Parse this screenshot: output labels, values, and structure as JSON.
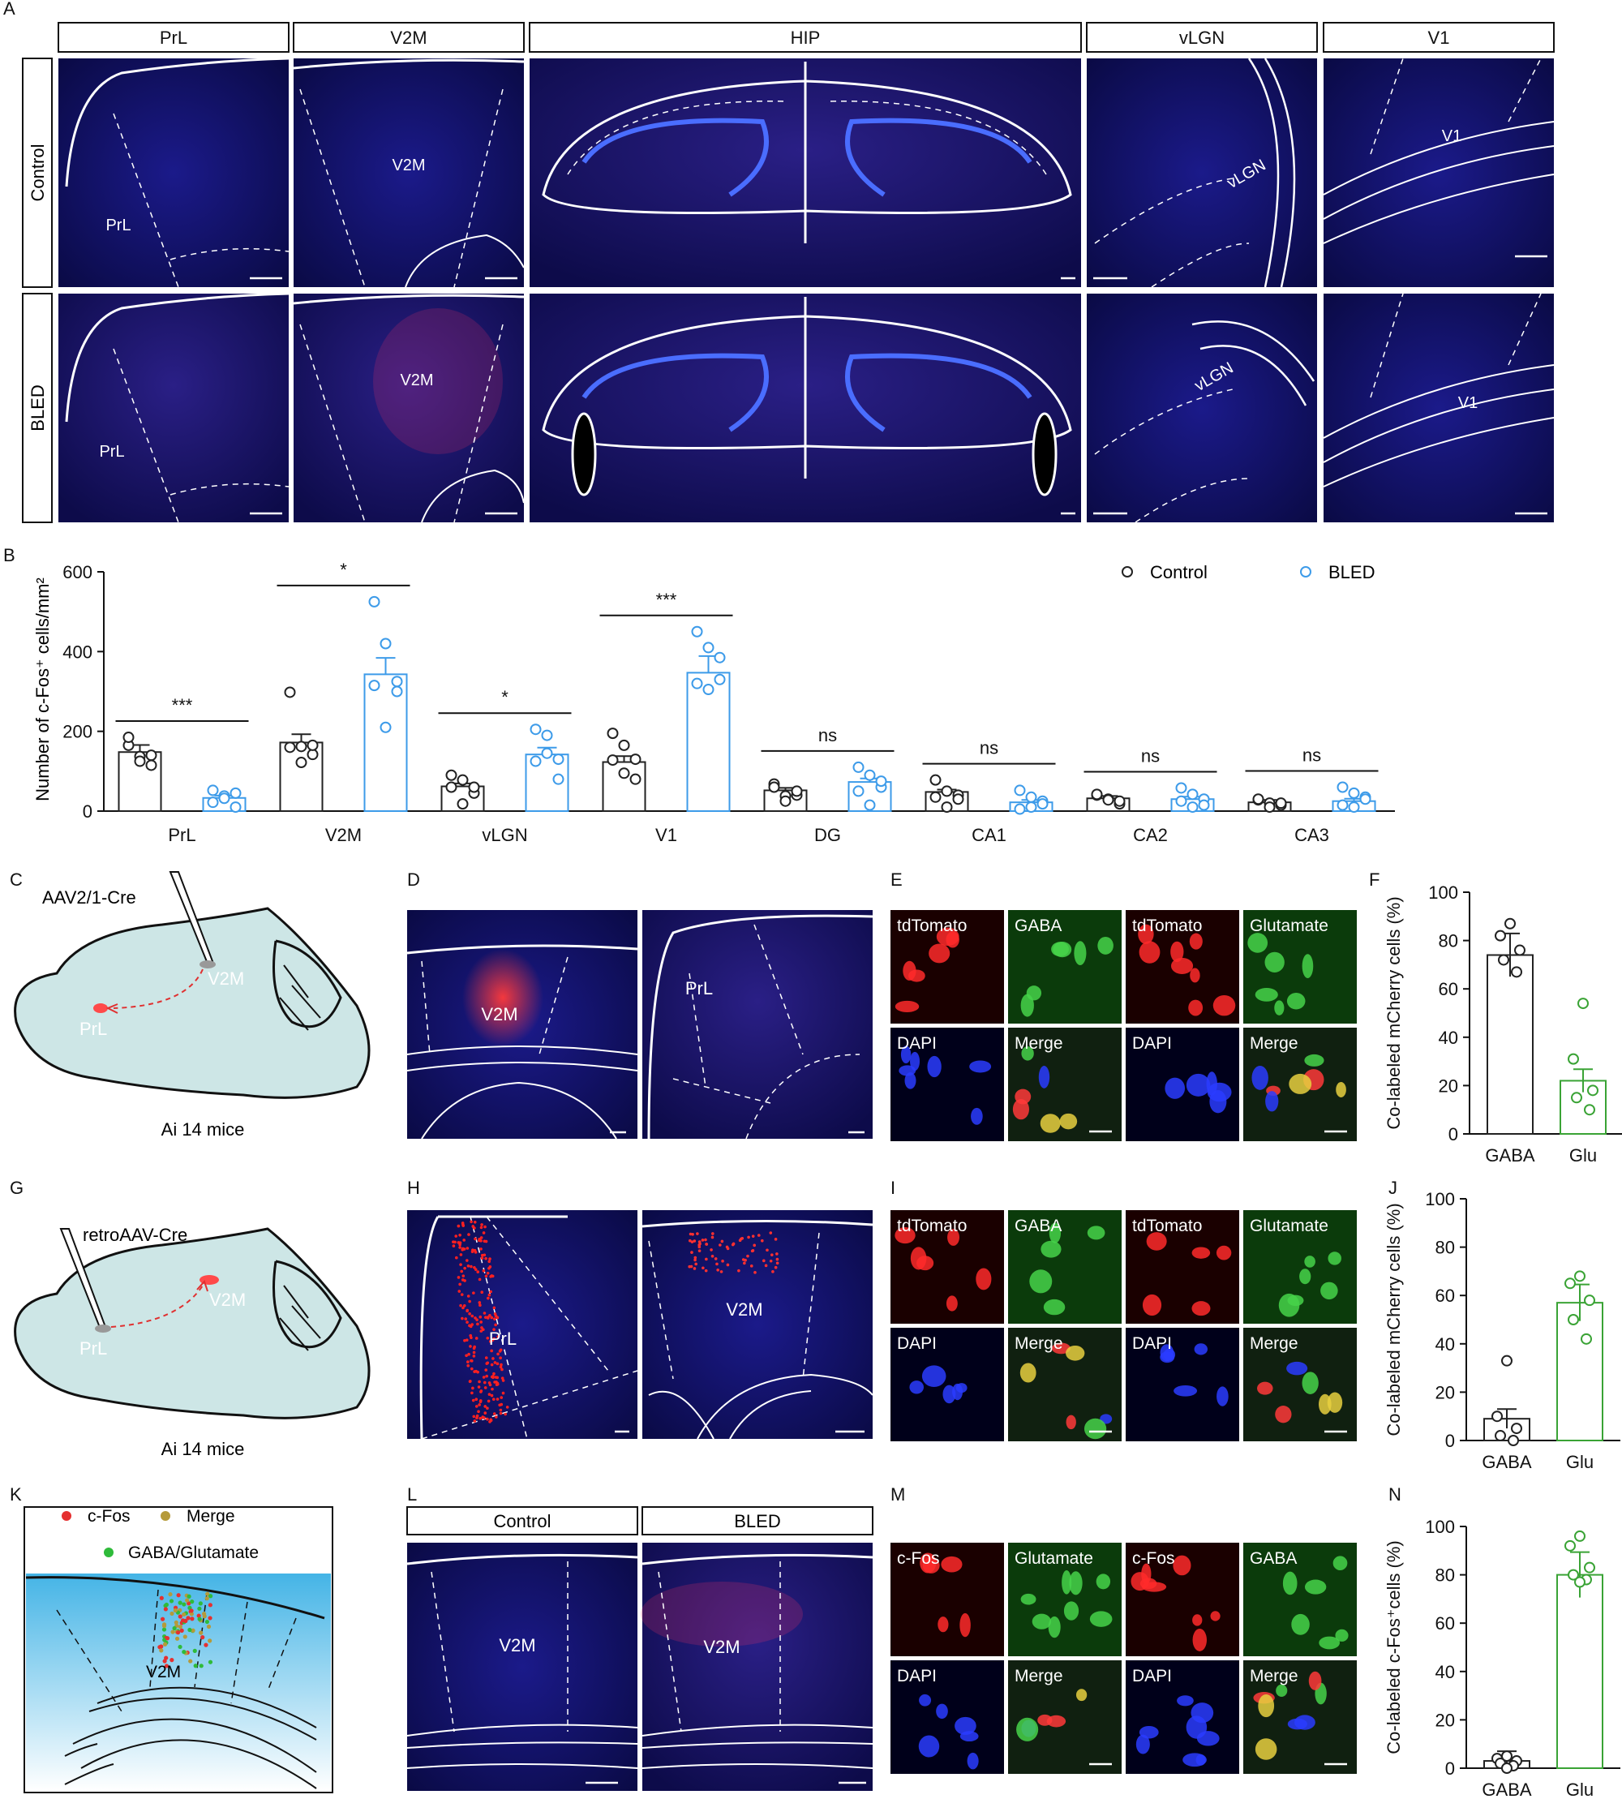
{
  "panel_letters": [
    "A",
    "B",
    "C",
    "D",
    "E",
    "F",
    "G",
    "H",
    "I",
    "J",
    "K",
    "L",
    "M",
    "N"
  ],
  "panelA": {
    "columns": [
      "PrL",
      "V2M",
      "HIP",
      "vLGN",
      "V1"
    ],
    "rows": [
      "Control",
      "BLED"
    ],
    "control_labels": [
      "PrL",
      "V2M",
      "",
      "vLGN",
      "V1"
    ],
    "bled_labels": [
      "PrL",
      "V2M",
      "",
      "vLGN",
      "V1"
    ]
  },
  "chart_data": [
    {
      "panel": "B",
      "type": "bar",
      "ylabel": "Number of c-Fos⁺ cells/mm²",
      "ylim": [
        0,
        600
      ],
      "yticks": [
        0,
        200,
        400,
        600
      ],
      "categories": [
        "PrL",
        "V2M",
        "vLGN",
        "V1",
        "DG",
        "CA1",
        "CA2",
        "CA3"
      ],
      "series": [
        {
          "name": "Control",
          "color": "#222222",
          "values": [
            148,
            172,
            62,
            123,
            52,
            48,
            32,
            22
          ]
        },
        {
          "name": "BLED",
          "color": "#3d9be9",
          "values": [
            33,
            343,
            142,
            347,
            73,
            22,
            30,
            25
          ]
        }
      ],
      "significance": [
        "***",
        "*",
        "*",
        "***",
        "ns",
        "ns",
        "ns",
        "ns"
      ],
      "legend": "top-right",
      "points_control": [
        [
          165,
          137,
          140,
          185,
          125,
          115
        ],
        [
          298,
          162,
          142,
          160,
          122,
          165
        ],
        [
          90,
          78,
          45,
          60,
          18,
          60
        ],
        [
          195,
          165,
          130,
          128,
          95,
          80
        ],
        [
          68,
          38,
          40,
          60,
          25,
          50
        ],
        [
          78,
          50,
          40,
          35,
          10,
          30
        ],
        [
          40,
          30,
          18,
          42,
          28,
          25
        ],
        [
          28,
          20,
          15,
          30,
          10,
          20
        ]
      ],
      "points_bled": [
        [
          52,
          38,
          10,
          22,
          32,
          45
        ],
        [
          525,
          420,
          325,
          315,
          210,
          300
        ],
        [
          205,
          190,
          130,
          125,
          145,
          80
        ],
        [
          450,
          410,
          385,
          320,
          305,
          330
        ],
        [
          110,
          90,
          60,
          50,
          15,
          75
        ],
        [
          52,
          35,
          25,
          5,
          10,
          18
        ],
        [
          58,
          42,
          30,
          25,
          10,
          15
        ],
        [
          60,
          45,
          35,
          15,
          10,
          30
        ]
      ]
    },
    {
      "panel": "F",
      "type": "bar",
      "ylabel": "Co-labeled mCherry cells (%)",
      "ylim": [
        0,
        100
      ],
      "yticks": [
        0,
        20,
        40,
        60,
        80,
        100
      ],
      "categories": [
        "GABA",
        "Glu"
      ],
      "values": [
        74,
        22
      ],
      "colors": [
        "#222222",
        "#3aa335"
      ],
      "points": [
        [
          87,
          82,
          76,
          72,
          67
        ],
        [
          54,
          31,
          18,
          15,
          10
        ]
      ]
    },
    {
      "panel": "J",
      "type": "bar",
      "ylabel": "Co-labeled mCherry cells (%)",
      "ylim": [
        0,
        100
      ],
      "yticks": [
        0,
        20,
        40,
        60,
        80,
        100
      ],
      "categories": [
        "GABA",
        "Glu"
      ],
      "values": [
        9,
        57
      ],
      "colors": [
        "#222222",
        "#3aa335"
      ],
      "points": [
        [
          33,
          10,
          5,
          2,
          0
        ],
        [
          68,
          65,
          58,
          50,
          42
        ]
      ]
    },
    {
      "panel": "N",
      "type": "bar",
      "ylabel": "Co-labeled c-Fos⁺cells (%)",
      "ylim": [
        0,
        100
      ],
      "yticks": [
        0,
        20,
        40,
        60,
        80,
        100
      ],
      "categories": [
        "GABA",
        "Glu"
      ],
      "values": [
        3,
        80
      ],
      "colors": [
        "#222222",
        "#3aa335"
      ],
      "points": [
        [
          5,
          4,
          3,
          2,
          1,
          0
        ],
        [
          96,
          92,
          83,
          80,
          78,
          77
        ]
      ]
    }
  ],
  "legendB": {
    "control": "Control",
    "bled": "BLED"
  },
  "panelC": {
    "virus": "AAV2/1-Cre",
    "target": "V2M",
    "source": "PrL",
    "mice": "Ai 14 mice"
  },
  "panelG": {
    "virus": "retroAAV-Cre",
    "target": "V2M",
    "source": "PrL",
    "mice": "Ai 14 mice"
  },
  "panelD": {
    "left": "V2M",
    "right": "PrL"
  },
  "panelH": {
    "left": "PrL",
    "right": "V2M"
  },
  "panelE": {
    "labels": [
      "tdTomato",
      "GABA",
      "tdTomato",
      "Glutamate",
      "DAPI",
      "Merge",
      "DAPI",
      "Merge"
    ]
  },
  "panelI": {
    "labels": [
      "tdTomato",
      "GABA",
      "tdTomato",
      "Glutamate",
      "DAPI",
      "Merge",
      "DAPI",
      "Merge"
    ]
  },
  "panelM": {
    "labels": [
      "c-Fos",
      "Glutamate",
      "c-Fos",
      "GABA",
      "DAPI",
      "Merge",
      "DAPI",
      "Merge"
    ]
  },
  "panelK": {
    "legend1": "c-Fos",
    "legend2": "Merge",
    "legend3": "GABA/Glutamate",
    "region": "V2M"
  },
  "panelL": {
    "headers": [
      "Control",
      "BLED"
    ],
    "labels": [
      "V2M",
      "V2M"
    ]
  }
}
